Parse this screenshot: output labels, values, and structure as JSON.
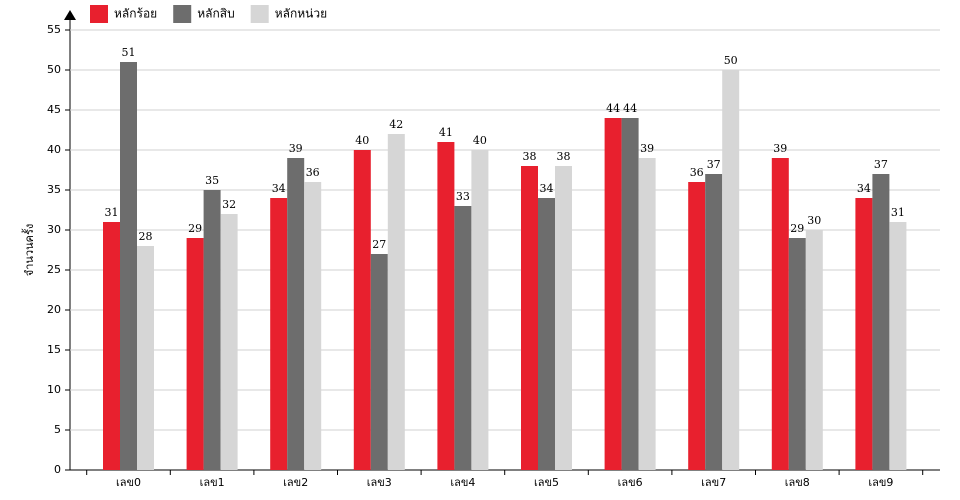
{
  "chart_data": {
    "type": "bar",
    "y_label": "จำนวนครั้ง",
    "categories": [
      "เลข0",
      "เลข1",
      "เลข2",
      "เลข3",
      "เลข4",
      "เลข5",
      "เลข6",
      "เลข7",
      "เลข8",
      "เลข9"
    ],
    "series": [
      {
        "name": "หลักร้อย",
        "color": "#e8202e",
        "values": [
          31,
          29,
          34,
          40,
          41,
          38,
          44,
          36,
          39,
          34
        ]
      },
      {
        "name": "หลักสิบ",
        "color": "#6d6d6d",
        "values": [
          51,
          35,
          39,
          27,
          33,
          34,
          44,
          37,
          29,
          37
        ]
      },
      {
        "name": "หลักหน่วย",
        "color": "#d6d6d6",
        "values": [
          28,
          32,
          36,
          42,
          40,
          38,
          39,
          50,
          30,
          31
        ]
      }
    ],
    "ylim": [
      0,
      55
    ],
    "yticks": [
      0,
      5,
      10,
      15,
      20,
      25,
      30,
      35,
      40,
      45,
      50,
      55
    ],
    "grid": true,
    "legend": "top-left"
  }
}
